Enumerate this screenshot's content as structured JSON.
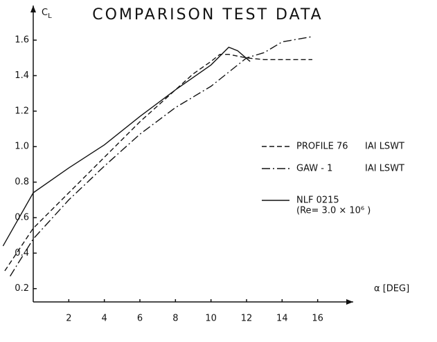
{
  "chart_data": {
    "type": "line",
    "title": "COMPARISON TEST DATA",
    "ylabel": {
      "main": "C",
      "sub": "L"
    },
    "xlabel": "α [DEG]",
    "xlim": [
      -1.87,
      18
    ],
    "ylim": [
      0.125,
      1.795
    ],
    "xticks": [
      2,
      4,
      6,
      8,
      10,
      12,
      14,
      16
    ],
    "yticks": [
      0.2,
      0.4,
      0.6,
      0.8,
      {
        "value": 1,
        "label": "1.0"
      },
      1.2,
      1.4,
      1.6
    ],
    "series": [
      {
        "name": "PROFILE 76",
        "note": "IAI LSWT",
        "color": "#111111",
        "style": "dashed",
        "x": [
          -1.6,
          0,
          2,
          4,
          6,
          8,
          9,
          10,
          10.5,
          11,
          12,
          13,
          15.7
        ],
        "values": [
          0.3,
          0.54,
          0.74,
          0.94,
          1.14,
          1.32,
          1.41,
          1.48,
          1.52,
          1.52,
          1.5,
          1.49,
          1.49
        ]
      },
      {
        "name": "GAW - 1",
        "note": "IAI LSWT",
        "color": "#111111",
        "style": "dashdot",
        "x": [
          -1.3,
          0,
          2,
          4,
          6,
          8,
          10,
          11,
          12,
          13,
          14,
          15.7
        ],
        "values": [
          0.27,
          0.48,
          0.7,
          0.89,
          1.07,
          1.22,
          1.34,
          1.42,
          1.5,
          1.53,
          1.59,
          1.62
        ]
      },
      {
        "name": "NLF 0215",
        "note": "(Re= 3.0 × 10⁶ )",
        "color": "#111111",
        "style": "solid",
        "x": [
          -1.7,
          0,
          2,
          4,
          6,
          8,
          10,
          11,
          11.5,
          12.2
        ],
        "values": [
          0.44,
          0.74,
          0.88,
          1.01,
          1.17,
          1.32,
          1.46,
          1.56,
          1.54,
          1.48
        ]
      }
    ]
  }
}
